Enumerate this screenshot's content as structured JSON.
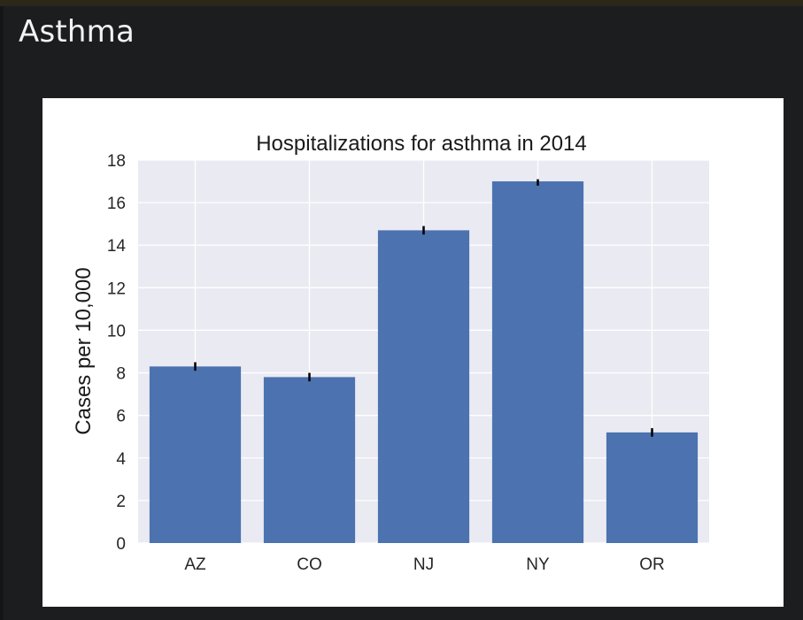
{
  "page": {
    "title": "Asthma"
  },
  "chart_data": {
    "type": "bar",
    "title": "Hospitalizations for asthma in 2014",
    "xlabel": "",
    "ylabel": "Cases per 10,000",
    "categories": [
      "AZ",
      "CO",
      "NJ",
      "NY",
      "OR"
    ],
    "values": [
      8.3,
      7.8,
      14.7,
      17.0,
      5.2
    ],
    "error_low": [
      8.1,
      7.6,
      14.5,
      16.8,
      5.0
    ],
    "error_high": [
      8.5,
      8.0,
      14.9,
      17.1,
      5.4
    ],
    "ylim": [
      0,
      18
    ],
    "yticks": [
      "0",
      "2",
      "4",
      "6",
      "8",
      "10",
      "12",
      "14",
      "16",
      "18"
    ],
    "grid": true,
    "colors": {
      "bar": "#4c72b0",
      "plot_background": "#eaeaf2",
      "grid": "#ffffff",
      "error_bar": "#000000"
    }
  }
}
